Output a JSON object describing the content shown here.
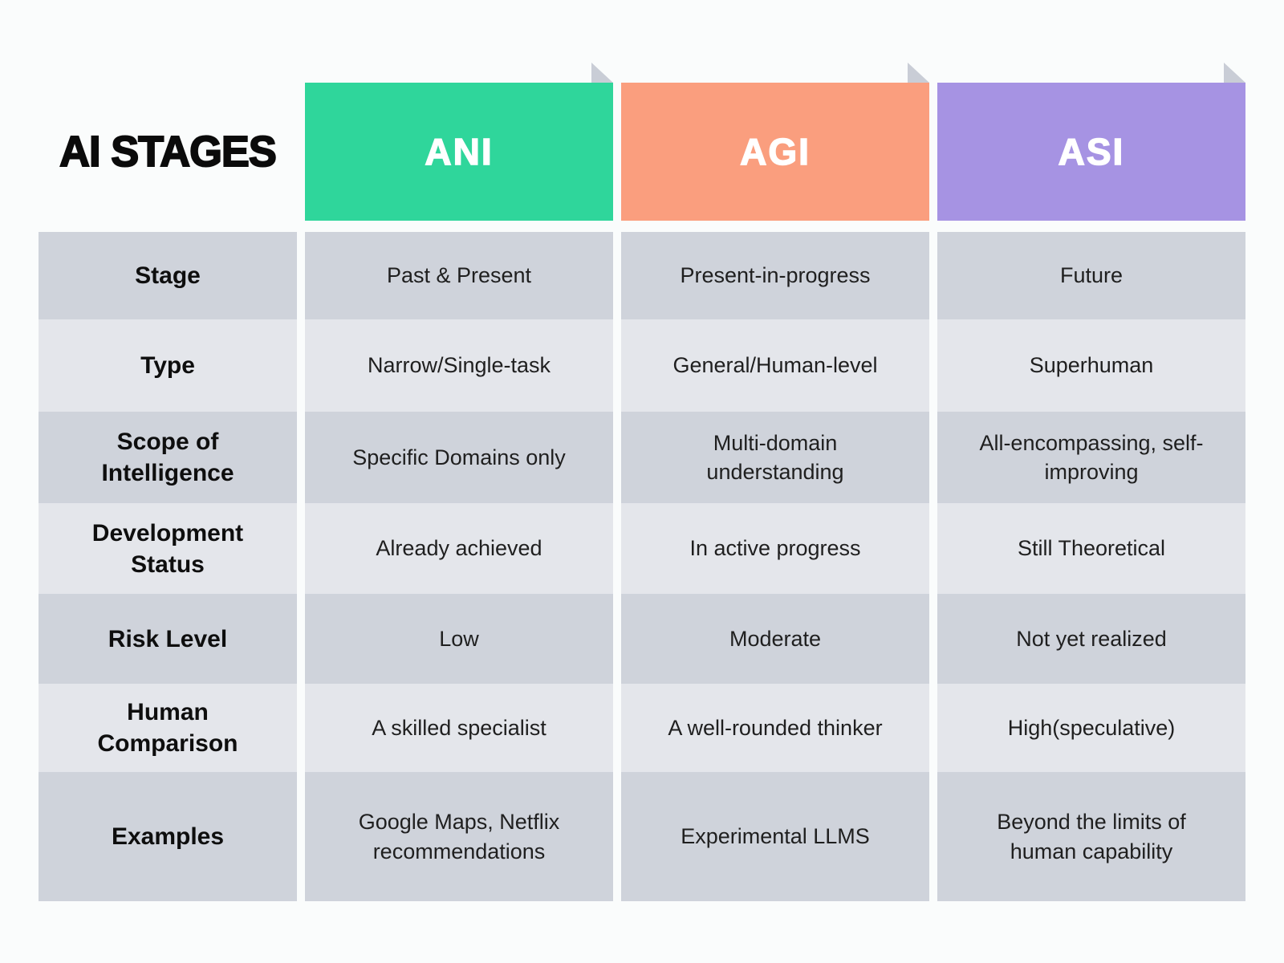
{
  "title": "AI STAGES",
  "columns": [
    {
      "label": "ANI",
      "color": "#2FD69B"
    },
    {
      "label": "AGI",
      "color": "#FA9E7E"
    },
    {
      "label": "ASI",
      "color": "#A693E3"
    }
  ],
  "rows": [
    {
      "label": "Stage",
      "ani": "Past & Present",
      "agi": "Present-in-progress",
      "asi": "Future"
    },
    {
      "label": "Type",
      "ani": "Narrow/Single-task",
      "agi": "General/Human-level",
      "asi": "Superhuman"
    },
    {
      "label": "Scope of Intelligence",
      "ani": "Specific Domains only",
      "agi": "Multi-domain understanding",
      "asi": "All-encompassing, self-improving"
    },
    {
      "label": "Development Status",
      "ani": "Already achieved",
      "agi": "In active progress",
      "asi": "Still Theoretical"
    },
    {
      "label": "Risk Level",
      "ani": "Low",
      "agi": "Moderate",
      "asi": "Not yet realized"
    },
    {
      "label": "Human Comparison",
      "ani": "A skilled specialist",
      "agi": "A well-rounded thinker",
      "asi": "High(speculative)"
    },
    {
      "label": "Examples",
      "ani": "Google Maps, Netflix recommendations",
      "agi": "Experimental LLMS",
      "asi": "Beyond the limits of human capability"
    }
  ],
  "colors": {
    "background": "#FAFCFC",
    "row_dark": "#CFD3DB",
    "row_light": "#E4E6EB",
    "ani_green": "#2FD69B",
    "agi_orange": "#FA9E7E",
    "asi_purple": "#A693E3",
    "fold_gray": "#C9CDD6",
    "title_text": "#0B0B0B",
    "cell_text": "#1F1F1F",
    "header_text": "#FFFFFF"
  }
}
